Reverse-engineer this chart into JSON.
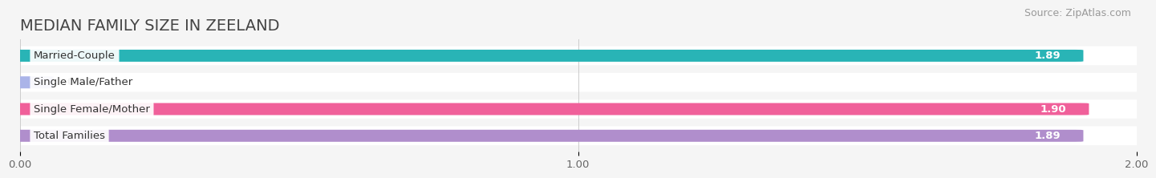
{
  "title": "MEDIAN FAMILY SIZE IN ZEELAND",
  "source": "Source: ZipAtlas.com",
  "categories": [
    "Married-Couple",
    "Single Male/Father",
    "Single Female/Mother",
    "Total Families"
  ],
  "values": [
    1.89,
    0.0,
    1.9,
    1.89
  ],
  "bar_colors": [
    "#29b4b6",
    "#aab4e8",
    "#f0609a",
    "#b08ecc"
  ],
  "xlim_max": 2.0,
  "xticks": [
    0.0,
    1.0,
    2.0
  ],
  "xtick_labels": [
    "0.00",
    "1.00",
    "2.00"
  ],
  "background_color": "#f5f5f5",
  "bar_bg_color": "#e2e2e2",
  "title_fontsize": 14,
  "source_fontsize": 9,
  "label_fontsize": 9.5,
  "value_fontsize": 9.5
}
